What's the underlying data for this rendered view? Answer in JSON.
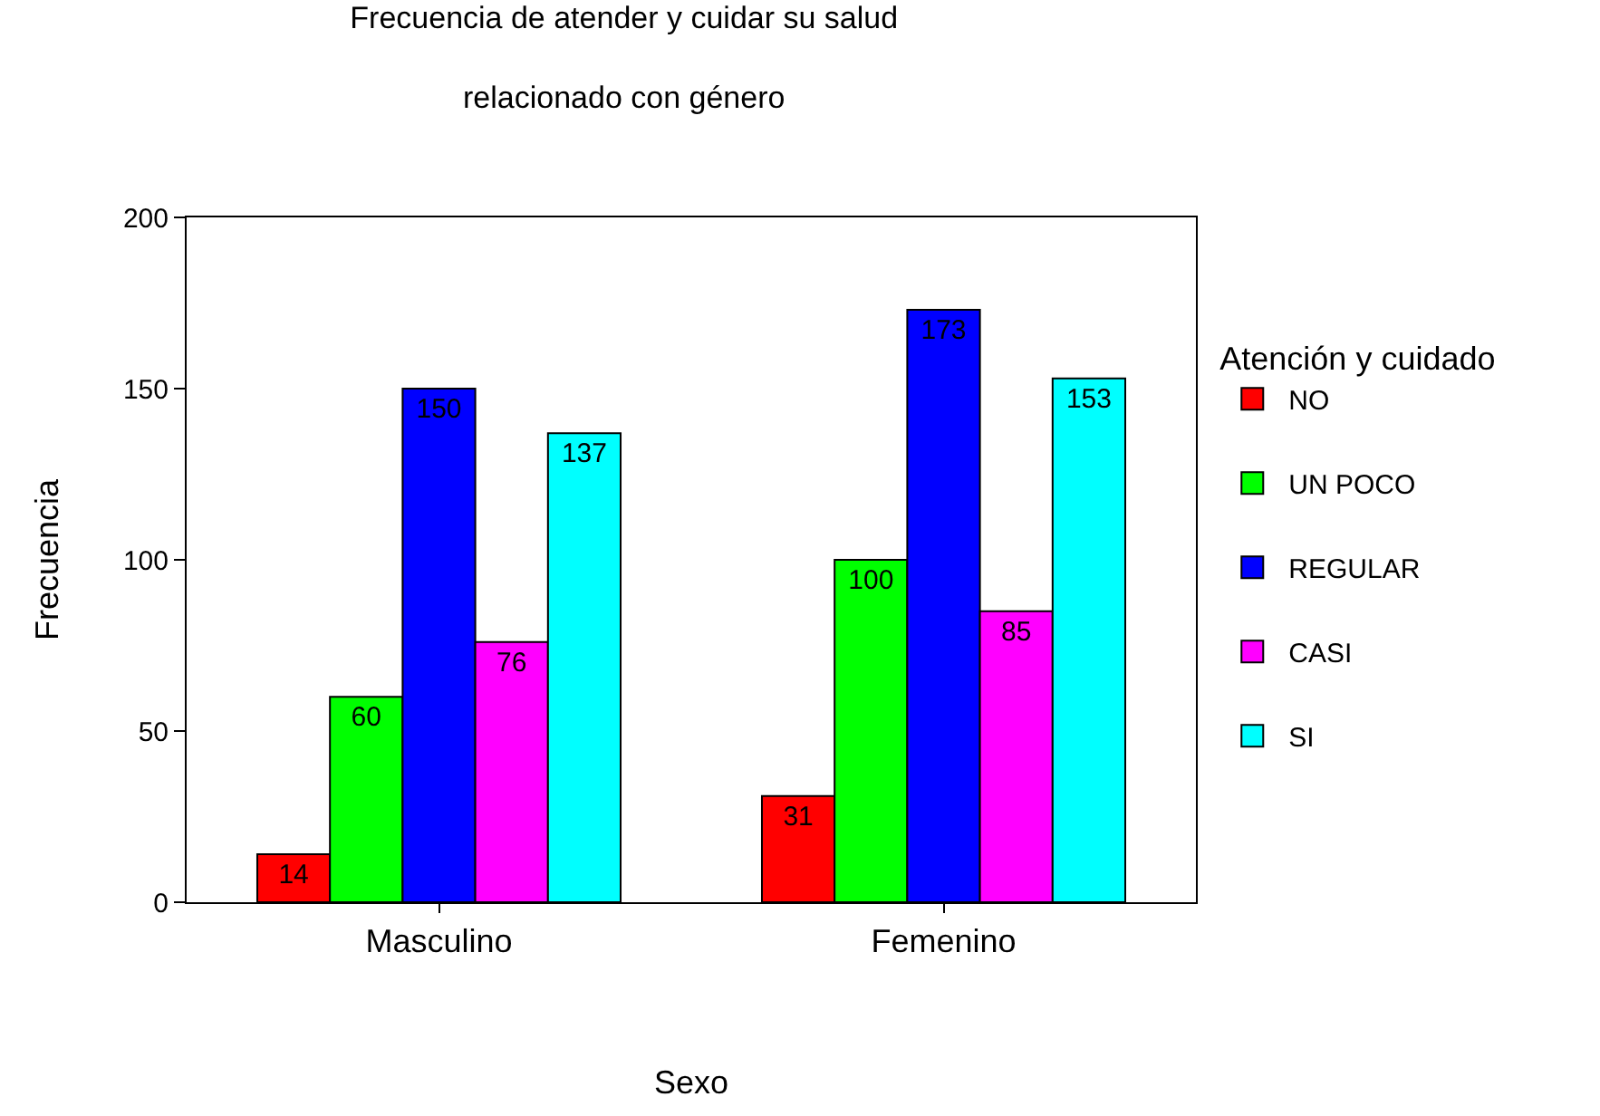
{
  "chart_data": {
    "type": "bar",
    "title": "Frecuencia de atender y cuidar su salud\nrelacionado con género",
    "xlabel": "Sexo",
    "ylabel": "Frecuencia",
    "legend_title": "Atención y cuidado",
    "categories": [
      "Masculino",
      "Femenino"
    ],
    "series": [
      {
        "name": "NO",
        "color": "#ff0000",
        "values": [
          14,
          31
        ]
      },
      {
        "name": "UN POCO",
        "color": "#00ff00",
        "values": [
          60,
          100
        ]
      },
      {
        "name": "REGULAR",
        "color": "#0000ff",
        "values": [
          150,
          173
        ]
      },
      {
        "name": "CASI",
        "color": "#ff00ff",
        "values": [
          76,
          85
        ]
      },
      {
        "name": "SI",
        "color": "#00ffff",
        "values": [
          137,
          153
        ]
      }
    ],
    "ylim": [
      0,
      200
    ],
    "yticks": [
      0,
      50,
      100,
      150,
      200
    ],
    "legend": "right",
    "data_labels": true
  }
}
